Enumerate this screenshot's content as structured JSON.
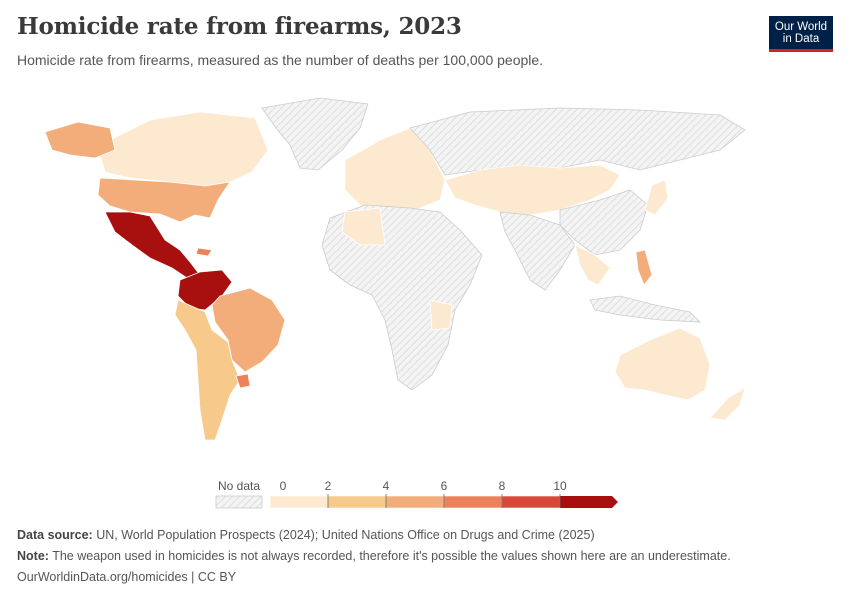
{
  "header": {
    "title": "Homicide rate from firearms, 2023",
    "subtitle": "Homicide rate from firearms, measured as the number of deaths per 100,000 people."
  },
  "logo": {
    "line1": "Our World",
    "line2": "in Data",
    "bg_color": "#002147",
    "accent_color": "#ce261e"
  },
  "legend": {
    "no_data_label": "No data",
    "ticks": [
      "0",
      "2",
      "4",
      "6",
      "8",
      "10"
    ],
    "bins": [
      {
        "min": 0,
        "max": 2,
        "color": "#fde9d0"
      },
      {
        "min": 2,
        "max": 4,
        "color": "#f7c98a"
      },
      {
        "min": 4,
        "max": 6,
        "color": "#f3ad7a"
      },
      {
        "min": 6,
        "max": 8,
        "color": "#ec825b"
      },
      {
        "min": 8,
        "max": 10,
        "color": "#d94937"
      },
      {
        "min": 10,
        "max": null,
        "color": "#a8100f"
      }
    ],
    "no_data_color": "#e6e6e6"
  },
  "regions": [
    {
      "name": "North America (Canada)",
      "bin": 0
    },
    {
      "name": "Alaska",
      "bin": 2
    },
    {
      "name": "United States",
      "bin": 2
    },
    {
      "name": "Mexico",
      "bin": 5
    },
    {
      "name": "Central America",
      "bin": 5
    },
    {
      "name": "Colombia / Venezuela",
      "bin": 5
    },
    {
      "name": "Brazil",
      "bin": 2
    },
    {
      "name": "Peru / Chile / Argentina",
      "bin": 1
    },
    {
      "name": "Uruguay",
      "bin": 3
    },
    {
      "name": "Europe",
      "bin": 0
    },
    {
      "name": "Russia / Central Asia",
      "bin": "nodata"
    },
    {
      "name": "Africa",
      "bin": "nodata"
    },
    {
      "name": "Australia",
      "bin": 0
    },
    {
      "name": "Philippines",
      "bin": 2
    }
  ],
  "footer": {
    "source_label": "Data source:",
    "source_text": "UN, World Population Prospects (2024); United Nations Office on Drugs and Crime (2025)",
    "note_label": "Note:",
    "note_text": "The weapon used in homicides is not always recorded, therefore it's possible the values shown here are an underestimate.",
    "url": "OurWorldinData.org/homicides | CC BY"
  }
}
